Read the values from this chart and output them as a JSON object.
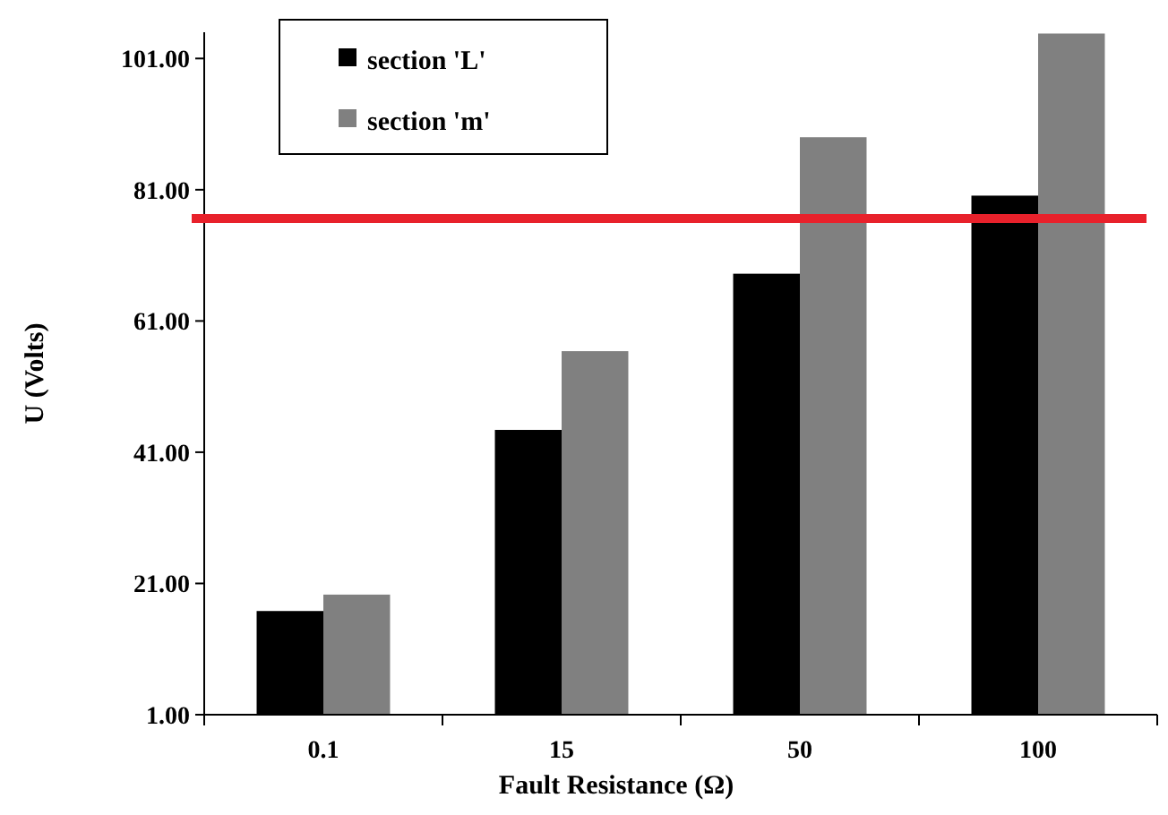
{
  "chart_data": {
    "type": "bar",
    "xlabel": "Fault Resistance (Ω)",
    "ylabel": "U (Volts)",
    "categories": [
      "0.1",
      "15",
      "50",
      "100"
    ],
    "series": [
      {
        "name": "section 'L'",
        "color": "#000000",
        "values": [
          16.8,
          44.4,
          68.2,
          80.1
        ]
      },
      {
        "name": "section 'm'",
        "color": "#808080",
        "values": [
          19.3,
          56.4,
          89.0,
          104.8
        ]
      }
    ],
    "ylim": [
      1,
      105
    ],
    "yticks": [
      {
        "value": 1,
        "label": "1.00"
      },
      {
        "value": 21,
        "label": "21.00"
      },
      {
        "value": 41,
        "label": "41.00"
      },
      {
        "value": 61,
        "label": "61.00"
      },
      {
        "value": 81,
        "label": "81.00"
      },
      {
        "value": 101,
        "label": "101.00"
      }
    ],
    "ref_lines": [
      {
        "axis": "y",
        "value": 76.6,
        "color": "#e8212b"
      }
    ],
    "legend": "top left",
    "grid": false
  }
}
